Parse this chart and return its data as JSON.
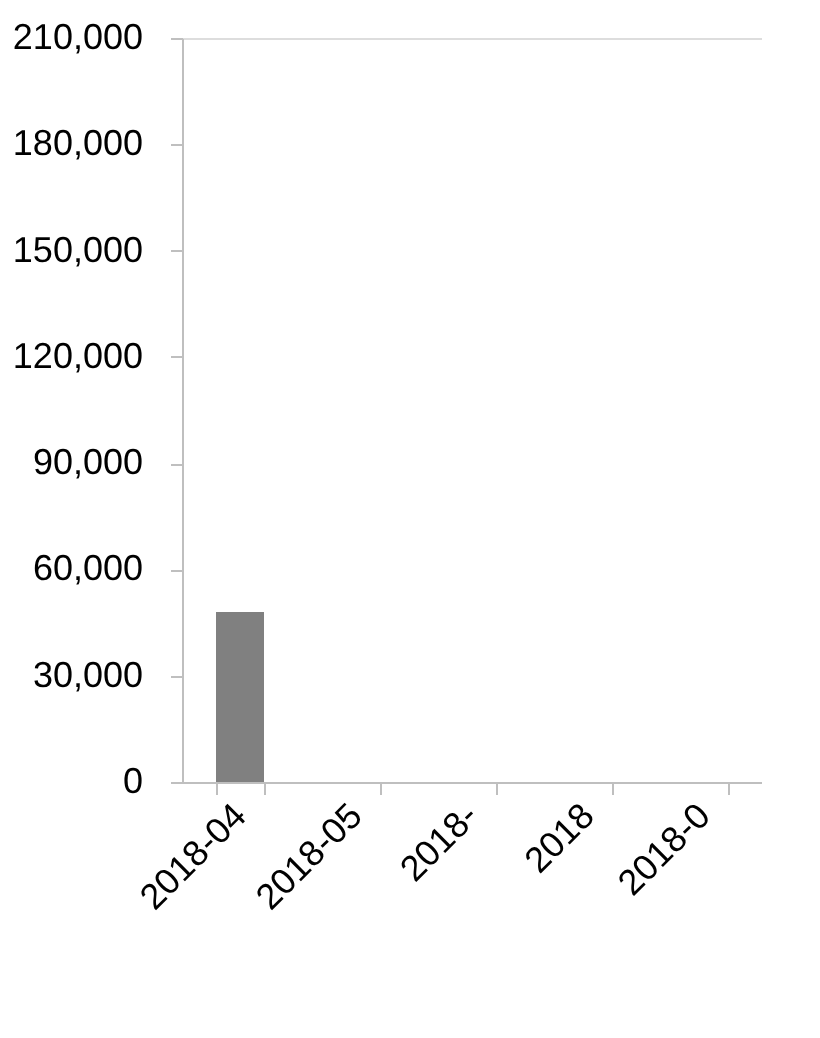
{
  "chart_data": {
    "type": "bar",
    "categories": [
      "2018-04",
      "2018-05",
      "2018-",
      "2018",
      "2018-0"
    ],
    "values": [
      48000,
      null,
      null,
      null,
      null
    ],
    "color": "#808080",
    "ylim": [
      0,
      210000
    ],
    "yticks": [
      {
        "value": 0,
        "label": "0"
      },
      {
        "value": 30000,
        "label": "30,000"
      },
      {
        "value": 60000,
        "label": "60,000"
      },
      {
        "value": 90000,
        "label": "90,000"
      },
      {
        "value": 120000,
        "label": "120,000"
      },
      {
        "value": 150000,
        "label": "150,000"
      },
      {
        "value": 180000,
        "label": "180,000"
      },
      {
        "value": 210000,
        "label": "210,000"
      }
    ],
    "grid": false
  }
}
